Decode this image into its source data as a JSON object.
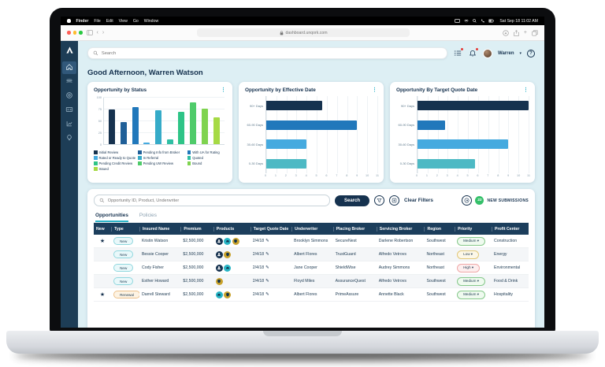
{
  "menu_bar": {
    "items": [
      "Finder",
      "File",
      "Edit",
      "View",
      "Go",
      "Window"
    ],
    "clock": "Sat Sep 18 11:02 AM"
  },
  "browser": {
    "url": "dashboard.unqork.com"
  },
  "sidebar": {
    "icons": [
      {
        "name": "home-icon",
        "active": true
      },
      {
        "name": "layers-icon",
        "active": false
      },
      {
        "name": "globe-icon",
        "active": false
      },
      {
        "name": "id-card-icon",
        "active": false
      },
      {
        "name": "chart-icon",
        "active": false
      },
      {
        "name": "bulb-icon",
        "active": false
      }
    ]
  },
  "header": {
    "search_placeholder": "Search",
    "user_name": "Warren",
    "help_label": "?"
  },
  "greeting": "Good Afternoon, Warren Watson",
  "chart_data": [
    {
      "type": "bar",
      "title": "Opportunity by Status",
      "categories": [
        "Initial Review",
        "Pending Info from Broker",
        "With UA for Rating",
        "Rated or Ready to Quote",
        "In Referral",
        "Quoted",
        "Pending Credit Review",
        "Pending UW Review",
        "Bound",
        "Issued"
      ],
      "values": [
        75,
        47,
        80,
        3,
        73,
        10,
        70,
        90,
        77,
        57
      ],
      "palette": [
        "#16324f",
        "#1f5f98",
        "#2178bb",
        "#45aadf",
        "#36abc8",
        "#2fbfa4",
        "#2ec487",
        "#4fcb6a",
        "#7fd34f",
        "#a6da45"
      ],
      "ylim": [
        0,
        100
      ],
      "yticks": [
        0,
        25,
        50,
        75,
        100
      ],
      "legend_position": "bottom",
      "grid": true
    },
    {
      "type": "bar",
      "title": "Opportunity by Effective Date",
      "orientation": "horizontal",
      "categories": [
        "90+ Days",
        "60-90 Days",
        "30-60 Days",
        "0-30 Days"
      ],
      "values": [
        5.5,
        9,
        4,
        4
      ],
      "palette": [
        "#16324f",
        "#2178bb",
        "#45aadf",
        "#4db9c4"
      ],
      "xlim": [
        0,
        11
      ],
      "xticks": [
        0,
        1,
        2,
        3,
        4,
        5,
        6,
        7,
        8,
        9,
        10,
        11
      ],
      "grid": true
    },
    {
      "type": "bar",
      "title": "Opportunity By Target Quote Date",
      "orientation": "horizontal",
      "categories": [
        "90+ Days",
        "60-90 Days",
        "30-60 Days",
        "0-30 Days"
      ],
      "values": [
        11,
        2.7,
        9,
        5.7
      ],
      "palette": [
        "#16324f",
        "#2178bb",
        "#45aadf",
        "#4db9c4"
      ],
      "xlim": [
        0,
        11
      ],
      "xticks": [
        0,
        1,
        2,
        3,
        4,
        5,
        6,
        7,
        8,
        9,
        10,
        11
      ],
      "grid": true
    }
  ],
  "filter_bar": {
    "search_placeholder": "Opportunity ID, Product, Underwriter",
    "search_label": "Search",
    "clear_filters_label": "Clear Filters",
    "new_submissions_count": "22",
    "new_submissions_label": "NEW SUBMISSIONS"
  },
  "tabs": [
    {
      "label": "Opportunities",
      "active": true
    },
    {
      "label": "Policies",
      "active": false
    }
  ],
  "table": {
    "columns": [
      "New",
      "Type",
      "Insured Name",
      "Premium",
      "Products",
      "Target Quote Date",
      "Underwriter",
      "Placing Broker",
      "Servicing Broker",
      "Region",
      "Priority",
      "Profit Center"
    ],
    "rows": [
      {
        "starred": true,
        "type": "New",
        "insured": "Kristin Watson",
        "premium": "$2,500,000",
        "products": [
          "person",
          "car",
          "shield"
        ],
        "date": "2/4/18",
        "underwriter": "Brooklyn Simmons",
        "placing": "SecureNest",
        "servicing": "Darlene Robertson",
        "region": "Southwest",
        "priority": "Medium",
        "profit": "Construction"
      },
      {
        "starred": false,
        "type": "New",
        "insured": "Bessie Cooper",
        "premium": "$2,500,000",
        "products": [
          "person",
          "shield"
        ],
        "date": "2/4/18",
        "underwriter": "Albert Flores",
        "placing": "TrustGuard",
        "servicing": "Alfredo Vetrovs",
        "region": "Northeast",
        "priority": "Low",
        "profit": "Energy"
      },
      {
        "starred": false,
        "type": "New",
        "insured": "Cody Fisher",
        "premium": "$2,500,000",
        "products": [
          "person",
          "car"
        ],
        "date": "2/4/18",
        "underwriter": "Jane Cooper",
        "placing": "ShieldWise",
        "servicing": "Audrey Simmons",
        "region": "Northeast",
        "priority": "High",
        "profit": "Environmental"
      },
      {
        "starred": false,
        "type": "New",
        "insured": "Esther Howard",
        "premium": "$2,500,000",
        "products": [
          "shield"
        ],
        "date": "2/4/18",
        "underwriter": "Floyd Miles",
        "placing": "AssuranceQuest",
        "servicing": "Alfredo Vetrovs",
        "region": "Southwest",
        "priority": "Medium",
        "profit": "Food & Drink"
      },
      {
        "starred": true,
        "type": "Renewal",
        "insured": "Darrell Steward",
        "premium": "$2,500,000",
        "products": [
          "car",
          "shield"
        ],
        "date": "2/4/18",
        "underwriter": "Albert Flores",
        "placing": "PrimeAssure",
        "servicing": "Annette Black",
        "region": "Southwest",
        "priority": "Medium",
        "profit": "Hospitality"
      }
    ]
  },
  "colors": {
    "navy": "#16324f",
    "teal_accent": "#2cb3c8",
    "app_bg": "#ddeff4",
    "table_header_bg": "#1c3e5c",
    "new_submissions_green": "#35c06a",
    "notification_red": "#e53935",
    "type_pills": {
      "New": {
        "bg": "#e9f8fa",
        "border": "#8fd7de"
      },
      "Renewal": {
        "bg": "#fdf3e3",
        "border": "#ecc08a"
      }
    },
    "priority_pills": {
      "Medium": {
        "bg": "#effaef",
        "border": "#86c98b"
      },
      "Low": {
        "bg": "#fcf7e8",
        "border": "#e2c878"
      },
      "High": {
        "bg": "#fdeeee",
        "border": "#f0a8a8"
      }
    },
    "product_badges": {
      "person": "#16324f",
      "car": "#27b5c5",
      "shield": "#c9a22b"
    }
  }
}
